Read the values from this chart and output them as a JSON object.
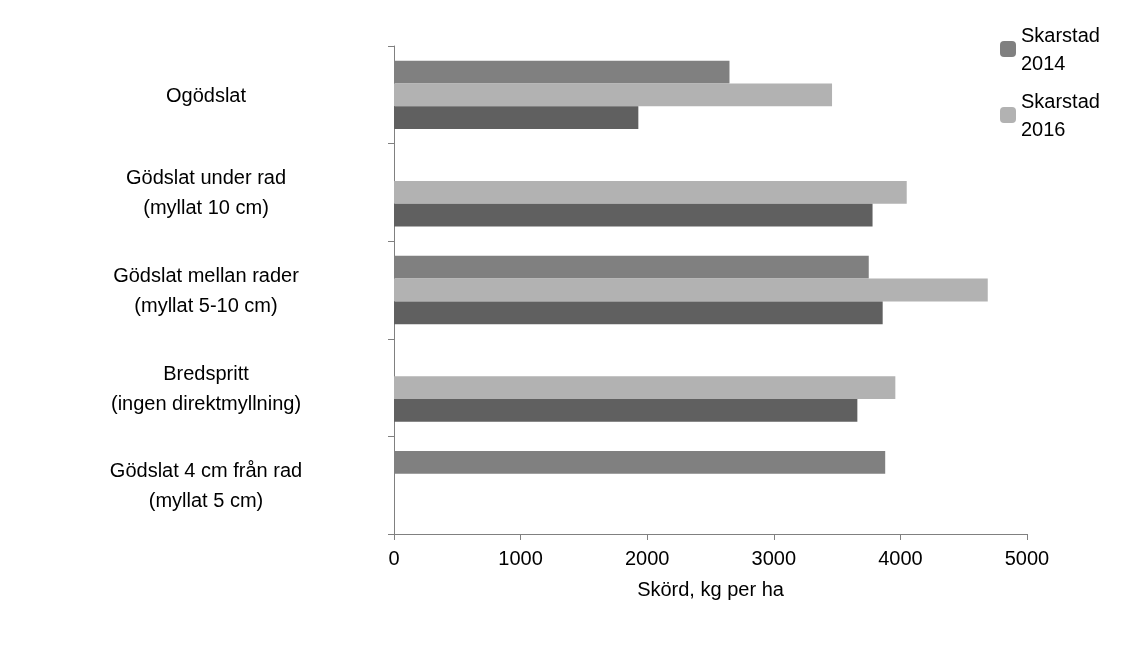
{
  "chart_data": {
    "type": "bar",
    "orientation": "horizontal",
    "xlabel": "Skörd, kg per ha",
    "categories": [
      "Ogödslat",
      "Gödslat under rad\n(myllat 10 cm)",
      "Gödslat mellan rader\n(myllat 5-10 cm)",
      "Bredspritt\n(ingen direktmyllning)",
      "Gödslat 4 cm från rad\n(myllat 5 cm)"
    ],
    "series": [
      {
        "name": "Skarstad 2014",
        "color": "#808080",
        "values": [
          2650,
          null,
          3750,
          null,
          3880
        ]
      },
      {
        "name": "Skarstad 2016",
        "color": "#b2b2b2",
        "values": [
          3460,
          4050,
          4690,
          3960,
          null
        ]
      },
      {
        "color": "#606060",
        "values": [
          1930,
          3780,
          3860,
          3660,
          null
        ]
      }
    ],
    "xlim": [
      0,
      5000
    ],
    "xticks": [
      0,
      1000,
      2000,
      3000,
      4000,
      5000
    ],
    "grid": false,
    "legend": "top right"
  }
}
